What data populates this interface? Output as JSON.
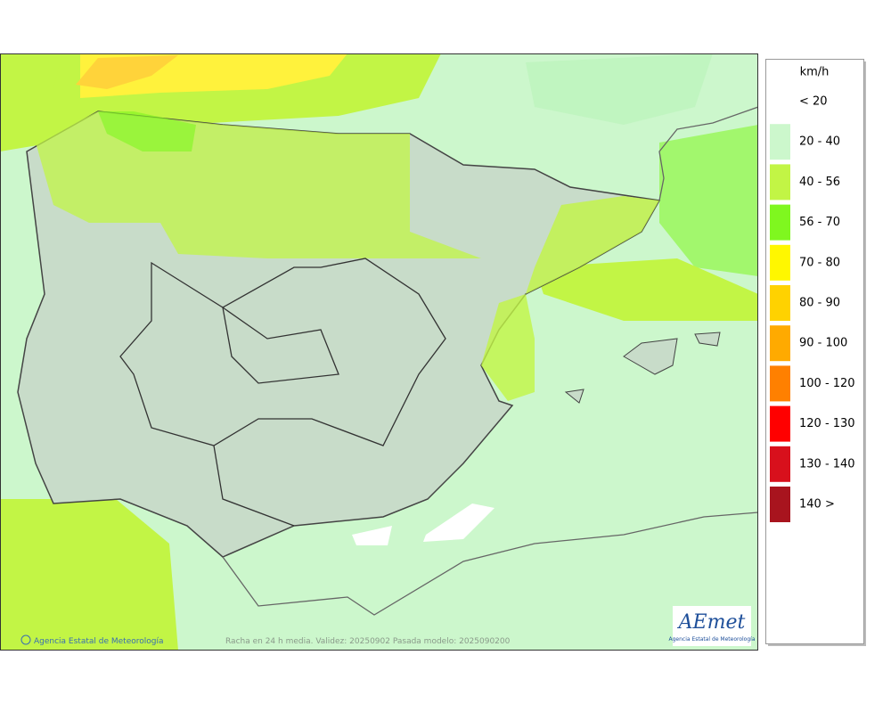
{
  "legend": {
    "unit": "km/h",
    "items": [
      {
        "label": "< 20",
        "color": "#ffffff"
      },
      {
        "label": "20 - 40",
        "color": "#ccf7cc"
      },
      {
        "label": "40 - 56",
        "color": "#c2f545"
      },
      {
        "label": "56 - 70",
        "color": "#7ff71f"
      },
      {
        "label": "70 - 80",
        "color": "#fff700"
      },
      {
        "label": "80 - 90",
        "color": "#ffd200"
      },
      {
        "label": "90 - 100",
        "color": "#ffaa00"
      },
      {
        "label": "100 - 120",
        "color": "#ff8000"
      },
      {
        "label": "120 - 130",
        "color": "#ff0000"
      },
      {
        "label": "130 - 140",
        "color": "#d8101c"
      },
      {
        "label": "140 >",
        "color": "#a8141e"
      }
    ]
  },
  "footer": {
    "credit": "Agencia Estatal de Meteorología",
    "caption": "Racha en 24 h media. Validez: 20250902 Pasada modelo: 2025090200"
  },
  "logo": {
    "name": "AEmet",
    "subtitle": "Agencia Estatal de Meteorología"
  }
}
